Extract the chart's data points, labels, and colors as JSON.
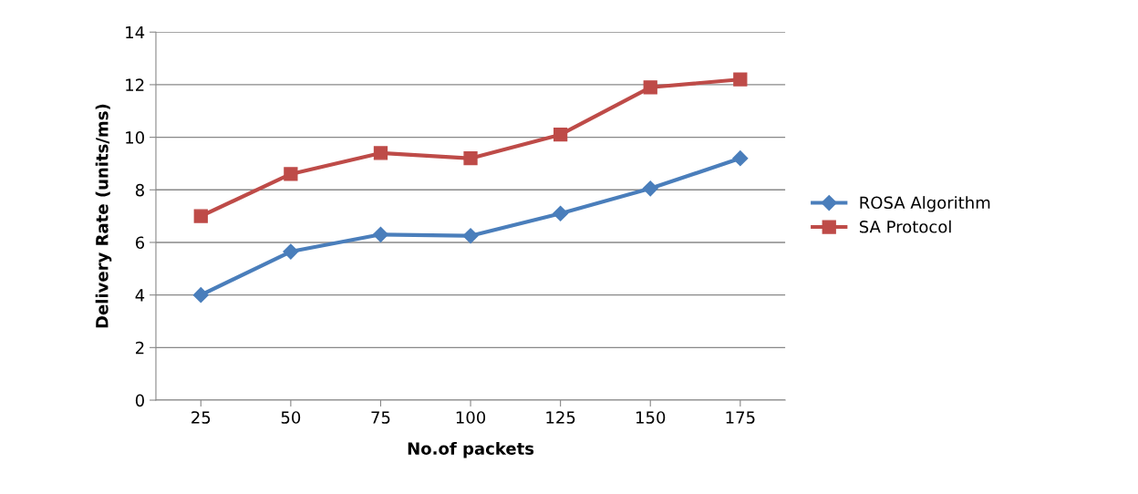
{
  "chart_data": {
    "type": "line",
    "xlabel": "No.of packets",
    "ylabel": "Delivery Rate (units/ms)",
    "categories": [
      "25",
      "50",
      "75",
      "100",
      "125",
      "150",
      "175"
    ],
    "series": [
      {
        "name": "ROSA Algorithm",
        "color": "#4a7ebb",
        "marker": "diamond",
        "values": [
          4.0,
          5.65,
          6.3,
          6.25,
          7.1,
          8.05,
          9.2
        ]
      },
      {
        "name": "SA Protocol",
        "color": "#be4b48",
        "marker": "square",
        "values": [
          7.0,
          8.6,
          9.4,
          9.2,
          10.1,
          11.9,
          12.2
        ]
      }
    ],
    "ylim": [
      0,
      14
    ],
    "yticks": [
      0,
      2,
      4,
      6,
      8,
      10,
      12,
      14
    ],
    "grid": "y",
    "legend": "right",
    "line_style": "solid"
  }
}
